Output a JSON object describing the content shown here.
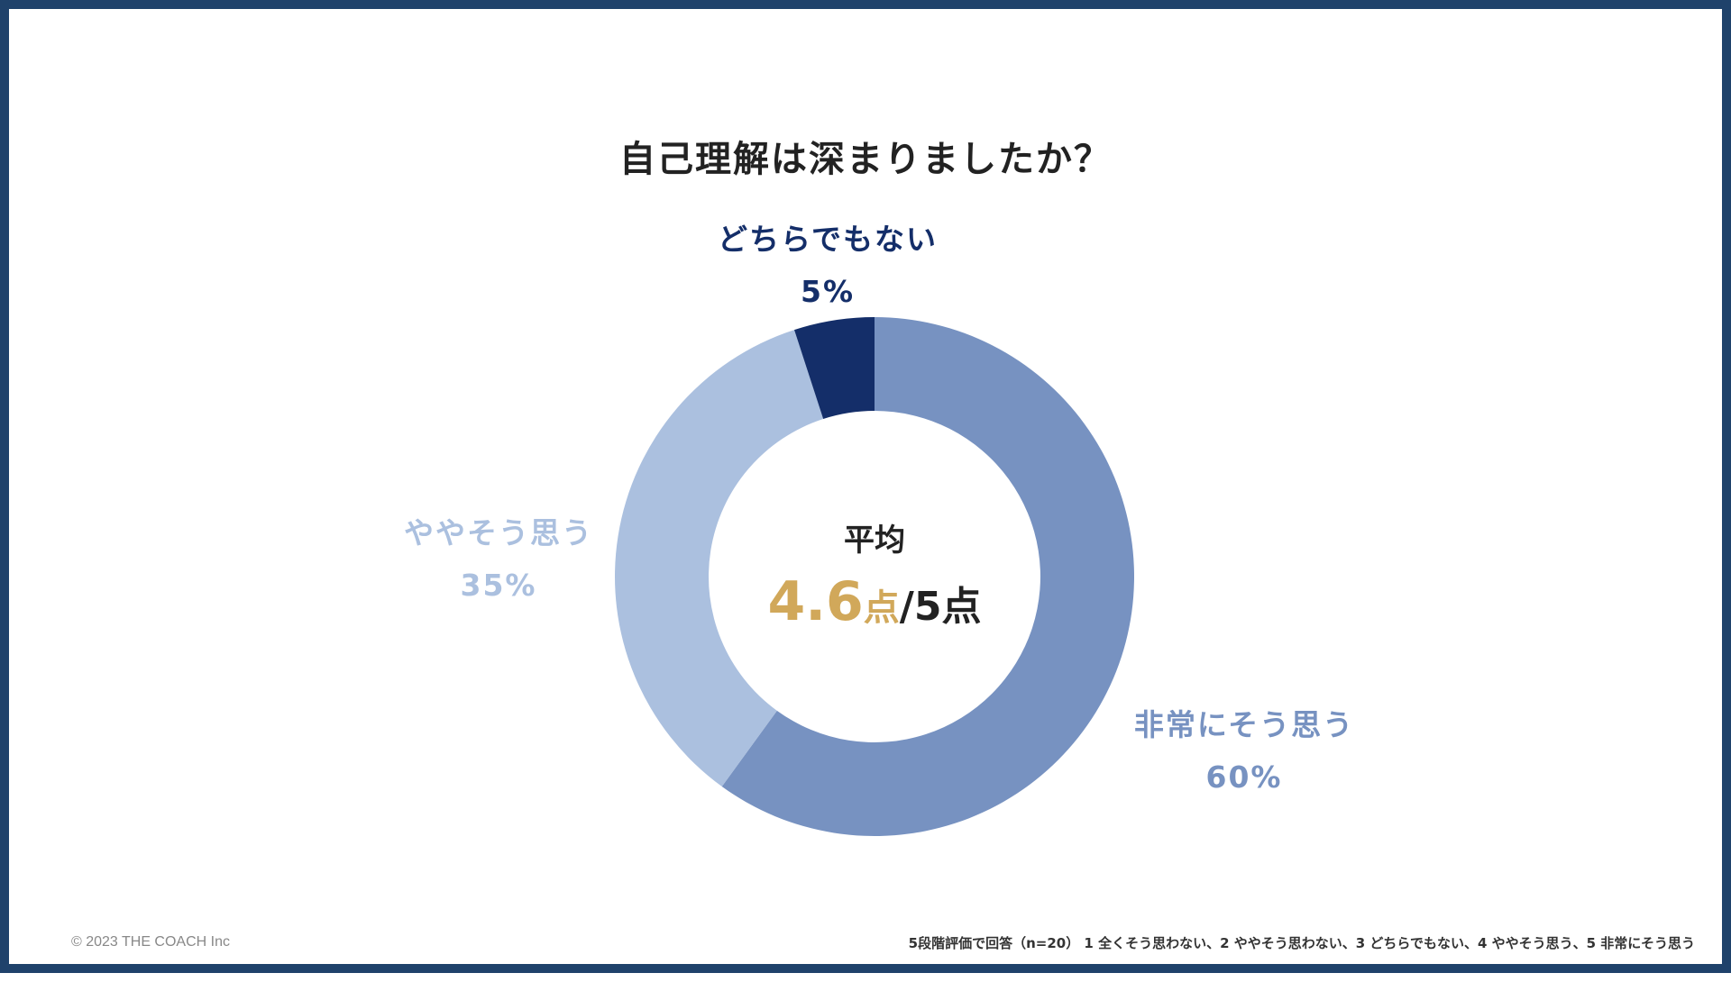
{
  "colors": {
    "frame": "#1f426b",
    "accent_gold": "#d1a85a",
    "text_dark": "#222222"
  },
  "chart_data": {
    "type": "pie",
    "title": "自己理解は深まりましたか？",
    "slices": [
      {
        "label": "非常にそう思う",
        "value": 60,
        "value_label": "60%",
        "color": "#7792c1"
      },
      {
        "label": "ややそう思う",
        "value": 35,
        "value_label": "35%",
        "color": "#abc0df"
      },
      {
        "label": "どちらでもない",
        "value": 5,
        "value_label": "5%",
        "color": "#142e69"
      }
    ],
    "donut": true,
    "center": {
      "title": "平均",
      "score": "4.6",
      "score_unit": "点",
      "score_max": "/5点"
    }
  },
  "footer": {
    "copyright": "© 2023 THE COACH Inc",
    "note": "5段階評価で回答（n=20） 1 全くそう思わない、2 ややそう思わない、3 どちらでもない、4 ややそう思う、5 非常にそう思う"
  }
}
